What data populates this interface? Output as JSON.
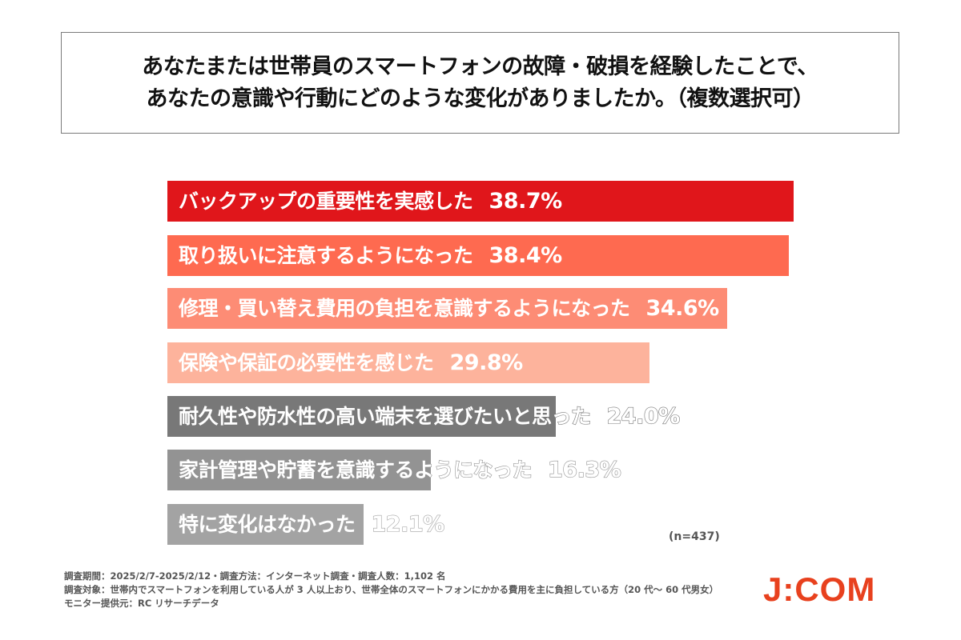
{
  "title": {
    "line1": "あなたまたは世帯員のスマートフォンの故障・破損を経験したことで、",
    "line2": "あなたの意識や行動にどのような変化がありましたか。（複数選択可）"
  },
  "chart_data": {
    "type": "bar",
    "orientation": "horizontal",
    "title": "あなたまたは世帯員のスマートフォンの故障・破損を経験したことで、あなたの意識や行動にどのような変化がありましたか。（複数選択可）",
    "categories": [
      "バックアップの重要性を実感した",
      "取り扱いに注意するようになった",
      "修理・買い替え費用の負担を意識するようになった",
      "保険や保証の必要性を感じた",
      "耐久性や防水性の高い端末を選びたいと思った",
      "家計管理や貯蓄を意識するようになった",
      "特に変化はなかった"
    ],
    "values": [
      38.7,
      38.4,
      34.6,
      29.8,
      24.0,
      16.3,
      12.1
    ],
    "labels": [
      "38.7%",
      "38.4%",
      "34.6%",
      "29.8%",
      "24.0%",
      "16.3%",
      "12.1%"
    ],
    "colors": [
      "#e0161b",
      "#fe6a50",
      "#fd8c75",
      "#fdb39c",
      "#787878",
      "#939393",
      "#a3a3a3"
    ],
    "unit": "%",
    "xlabel": "",
    "ylabel": "",
    "grid": false,
    "legend": "none",
    "annotation": "(n=437)"
  },
  "sample_note": "(n=437)",
  "footer": {
    "line1": "調査期間：2025/2/7-2025/2/12・調査方法：インターネット調査・調査人数：1,102 名",
    "line2": "調査対象：世帯内でスマートフォンを利用している人が 3 人以上おり、世帯全体のスマートフォンにかかる費用を主に負担している方（20 代～ 60 代男女）",
    "line3": "モニター提供元：RC リサーチデータ"
  },
  "logo": {
    "text": "J:COM",
    "color": "#e8411e"
  }
}
